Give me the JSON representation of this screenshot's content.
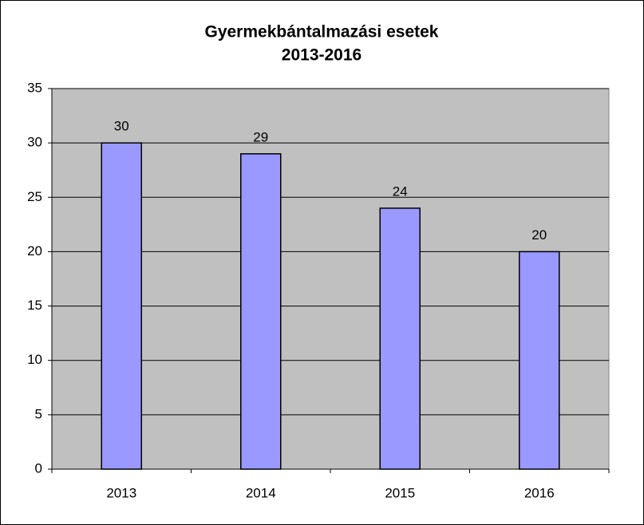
{
  "chart_data": {
    "type": "bar",
    "title": "Gyermekbántalmazási esetek",
    "subtitle": "2013-2016",
    "categories": [
      "2013",
      "2014",
      "2015",
      "2016"
    ],
    "values": [
      30,
      29,
      24,
      20
    ],
    "color": "#9999ff",
    "ylim": [
      0,
      35
    ],
    "yticks": [
      0,
      5,
      10,
      15,
      20,
      25,
      30,
      35
    ],
    "grid": true,
    "plot_background": "#c0c0c0"
  }
}
